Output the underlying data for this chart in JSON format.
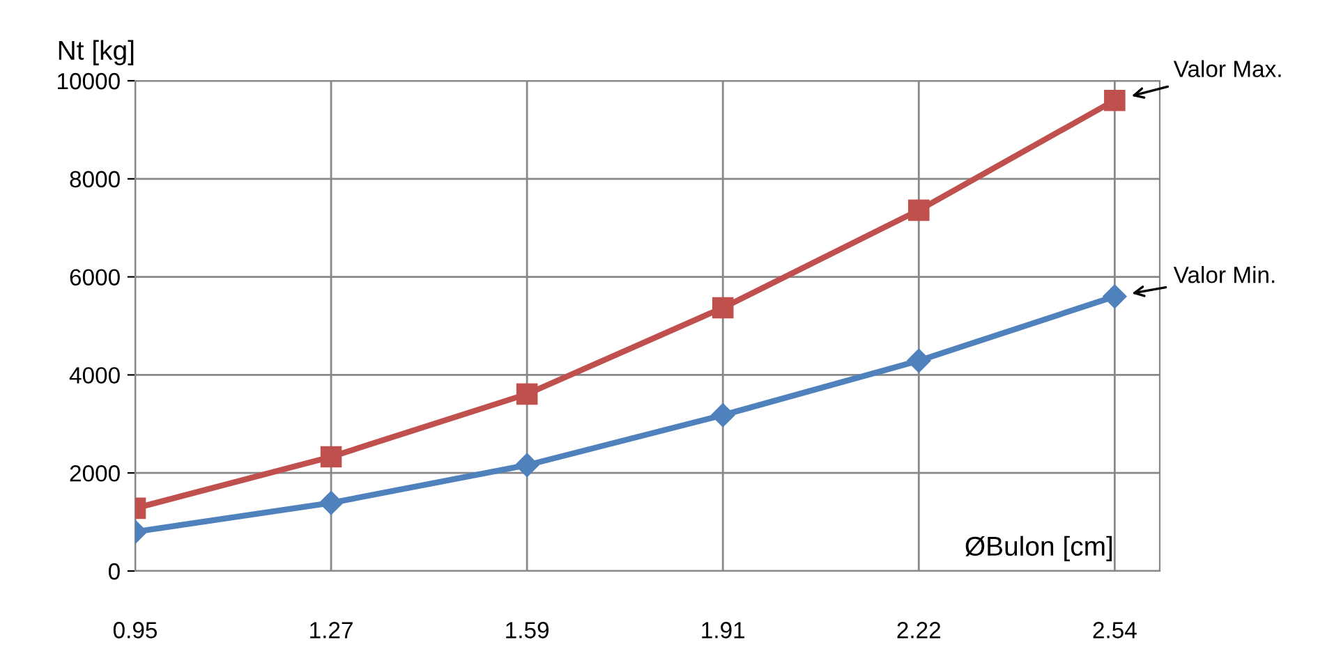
{
  "chart_data": {
    "type": "line",
    "xlabel": "ØBulon [cm]",
    "ylabel": "Nt [kg]",
    "categories": [
      "0.95",
      "1.27",
      "1.59",
      "1.91",
      "2.22",
      "2.54"
    ],
    "series": [
      {
        "color": "#c0504d",
        "marker": "square",
        "values": [
          1280,
          2330,
          3610,
          5370,
          7360,
          9600
        ]
      },
      {
        "color": "#4f81bd",
        "marker": "diamond",
        "values": [
          800,
          1390,
          2160,
          3180,
          4290,
          5600
        ]
      }
    ],
    "annotations": [
      {
        "text": "Valor Max.",
        "x": "2.54",
        "y": 9600
      },
      {
        "text": "Valor Min.",
        "x": "2.54",
        "y": 5600
      }
    ],
    "ylim": [
      0,
      10000
    ],
    "yticks": [
      0,
      2000,
      4000,
      6000,
      8000,
      10000
    ],
    "grid": true,
    "legend": false,
    "line_style": "solid"
  }
}
